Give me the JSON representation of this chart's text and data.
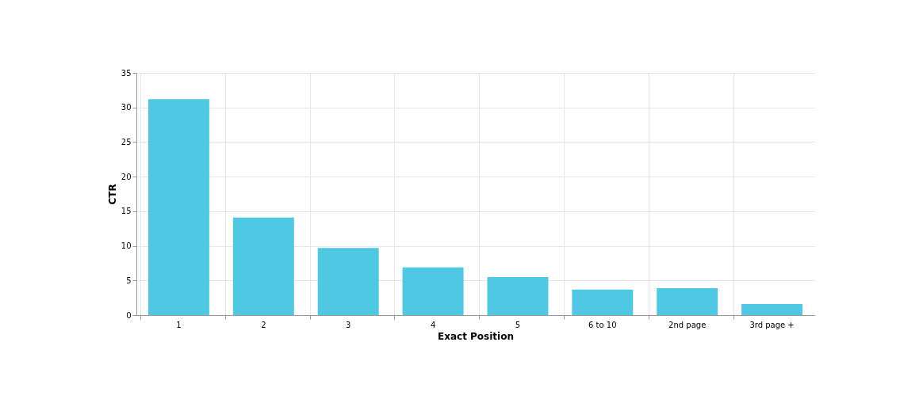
{
  "chart_data": {
    "type": "bar",
    "xlabel": "Exact Position",
    "ylabel": "CTR",
    "categories": [
      "1",
      "2",
      "3",
      "4",
      "5",
      "6 to 10",
      "2nd page",
      "3rd page +"
    ],
    "values": [
      31.2,
      14.1,
      9.7,
      6.9,
      5.5,
      3.7,
      3.9,
      1.6
    ],
    "color": "#4fc8e3",
    "ylim": [
      0,
      35
    ],
    "yticks": [
      0,
      5,
      10,
      15,
      20,
      25,
      30,
      35
    ],
    "grid": true
  }
}
